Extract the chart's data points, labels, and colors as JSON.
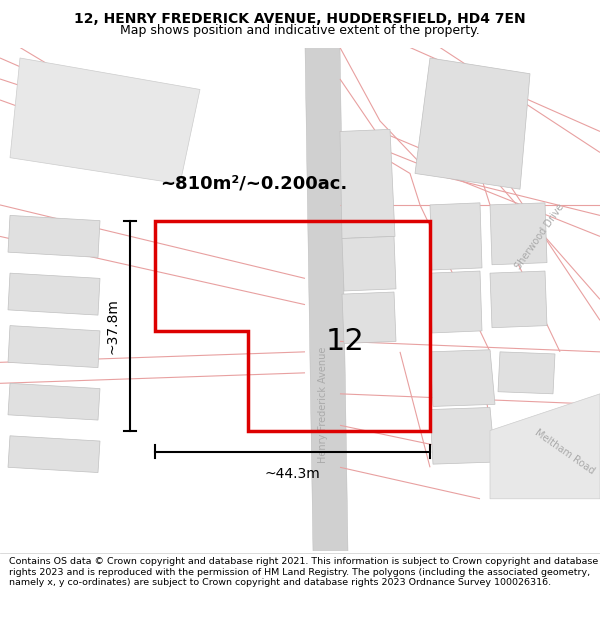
{
  "title_line1": "12, HENRY FREDERICK AVENUE, HUDDERSFIELD, HD4 7EN",
  "title_line2": "Map shows position and indicative extent of the property.",
  "footer_text": "Contains OS data © Crown copyright and database right 2021. This information is subject to Crown copyright and database rights 2023 and is reproduced with the permission of HM Land Registry. The polygons (including the associated geometry, namely x, y co-ordinates) are subject to Crown copyright and database rights 2023 Ordnance Survey 100026316.",
  "area_label": "~810m²/~0.200ac.",
  "width_label": "~44.3m",
  "height_label": "~37.8m",
  "property_number": "12",
  "map_bg": "#f8f8f8",
  "road_color": "#e8a0a0",
  "building_fill": "#e0e0e0",
  "building_edge": "#c0c0c0",
  "highlight_color": "#dd0000",
  "road_fill": "#d8d8d8",
  "title_bold_size": 10,
  "title_sub_size": 9
}
